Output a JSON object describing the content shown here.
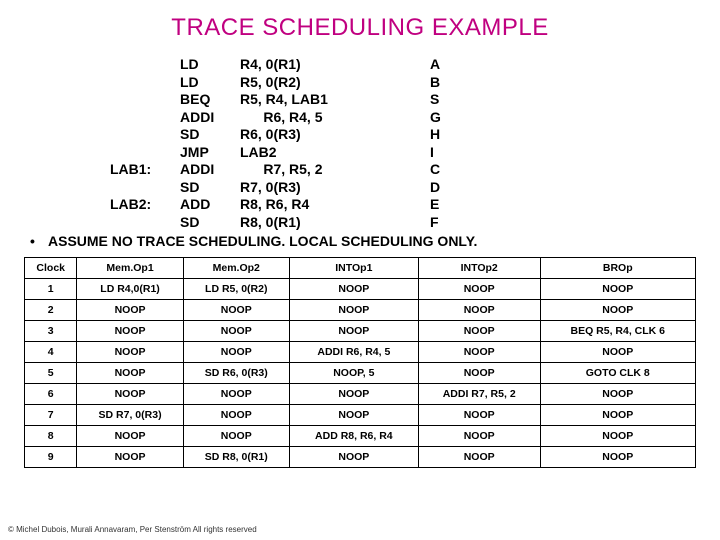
{
  "title": "TRACE SCHEDULING EXAMPLE",
  "code": [
    {
      "label": "",
      "instr": "LD",
      "args": "R4, 0(R1)",
      "tag": "A"
    },
    {
      "label": "",
      "instr": "LD",
      "args": "R5, 0(R2)",
      "tag": "B"
    },
    {
      "label": "",
      "instr": "BEQ",
      "args": "R5, R4, LAB1",
      "tag": "S"
    },
    {
      "label": "",
      "instr": "ADDI",
      "args": "      R6, R4, 5",
      "tag": "G"
    },
    {
      "label": "",
      "instr": "SD",
      "args": "R6, 0(R3)",
      "tag": "H"
    },
    {
      "label": "",
      "instr": "JMP",
      "args": "LAB2",
      "tag": "I"
    },
    {
      "label": "LAB1:",
      "instr": "ADDI",
      "args": "      R7, R5, 2",
      "tag": "C"
    },
    {
      "label": "",
      "instr": "SD",
      "args": "R7, 0(R3)",
      "tag": "D"
    },
    {
      "label": "LAB2:",
      "instr": "ADD",
      "args": "R8, R6, R4",
      "tag": "E"
    },
    {
      "label": "",
      "instr": "SD",
      "args": "R8, 0(R1)",
      "tag": "F"
    }
  ],
  "assume_text": "ASSUME NO TRACE SCHEDULING. LOCAL SCHEDULING ONLY.",
  "table": {
    "columns": [
      "Clock",
      "Mem.Op1",
      "Mem.Op2",
      "INTOp1",
      "INTOp2",
      "BROp"
    ],
    "rows": [
      [
        "1",
        "LD R4,0(R1)",
        "LD R5, 0(R2)",
        "NOOP",
        "NOOP",
        "NOOP"
      ],
      [
        "2",
        "NOOP",
        "NOOP",
        "NOOP",
        "NOOP",
        "NOOP"
      ],
      [
        "3",
        "NOOP",
        "NOOP",
        "NOOP",
        "NOOP",
        "BEQ R5, R4, CLK 6"
      ],
      [
        "4",
        "NOOP",
        "NOOP",
        "ADDI R6, R4, 5",
        "NOOP",
        "NOOP"
      ],
      [
        "5",
        "NOOP",
        "SD R6, 0(R3)",
        "NOOP, 5",
        "NOOP",
        "GOTO CLK 8"
      ],
      [
        "6",
        "NOOP",
        "NOOP",
        "NOOP",
        "ADDI R7, R5, 2",
        "NOOP"
      ],
      [
        "7",
        "SD R7, 0(R3)",
        "NOOP",
        "NOOP",
        "NOOP",
        "NOOP"
      ],
      [
        "8",
        "NOOP",
        "NOOP",
        "ADD R8, R6, R4",
        "NOOP",
        "NOOP"
      ],
      [
        "9",
        "NOOP",
        "SD R8, 0(R1)",
        "NOOP",
        "NOOP",
        "NOOP"
      ]
    ]
  },
  "footer": "© Michel Dubois, Murali Annavaram, Per Stenström All rights reserved"
}
